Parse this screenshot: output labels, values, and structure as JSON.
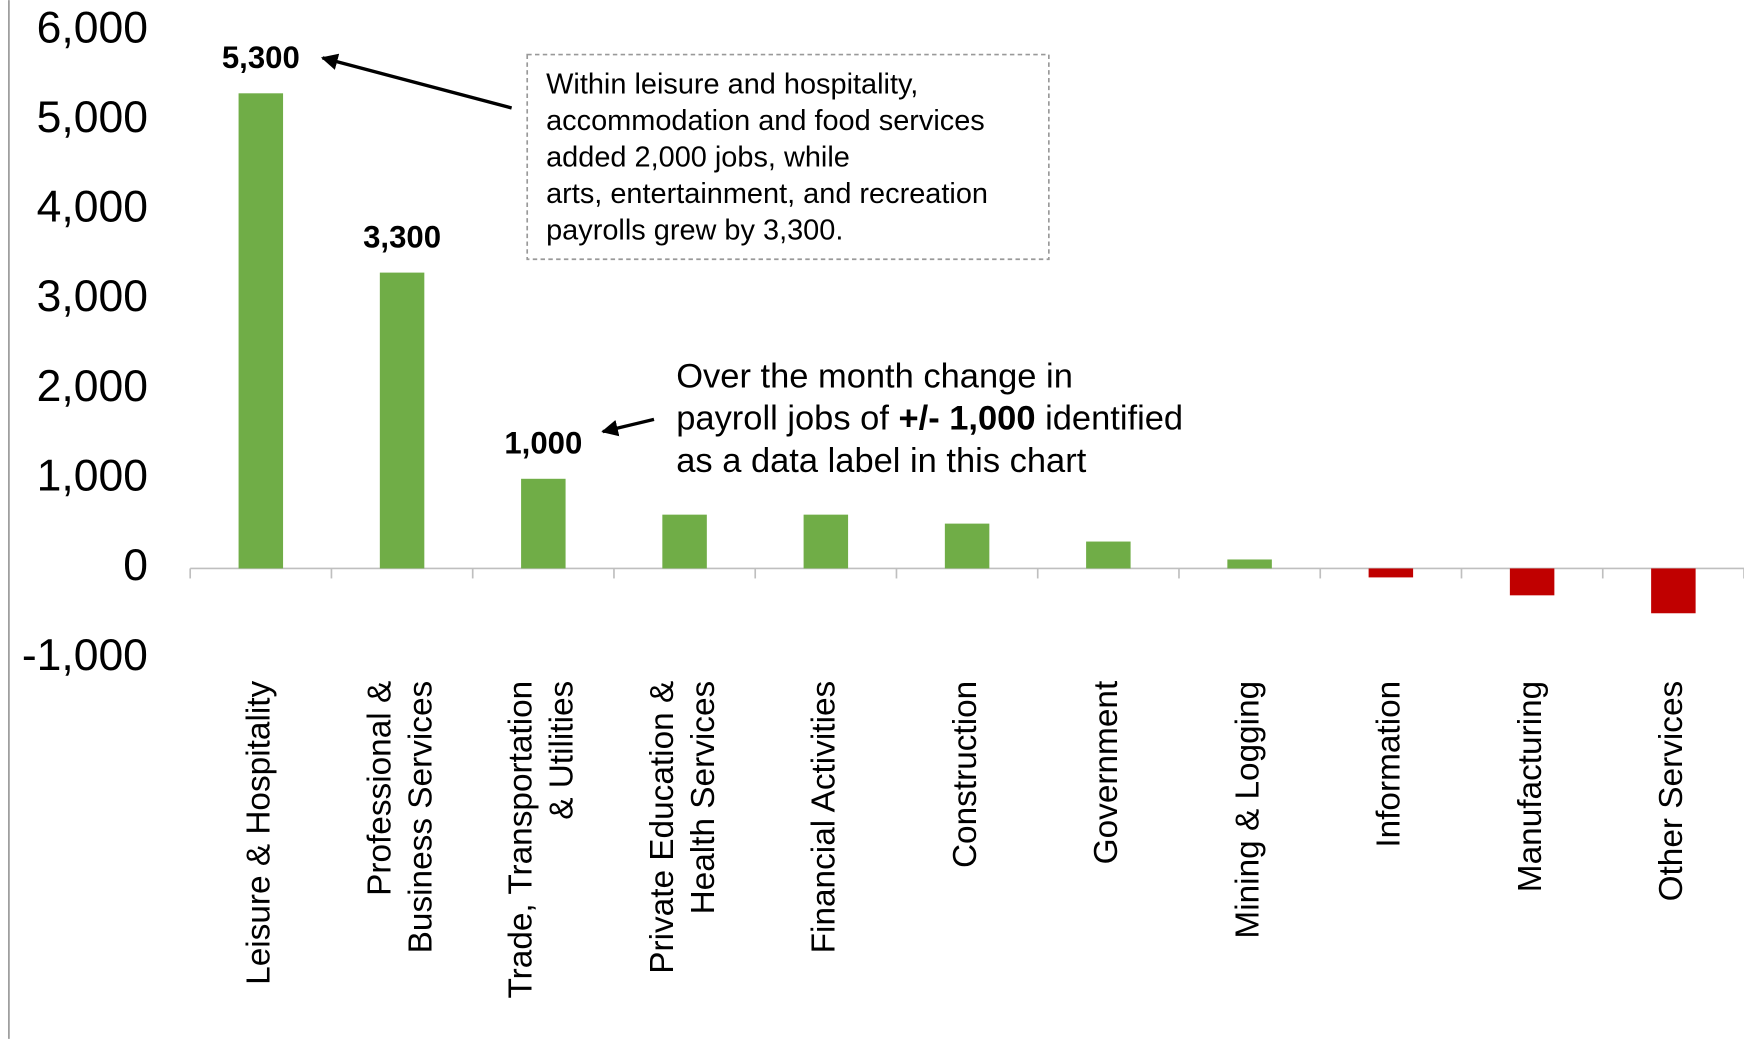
{
  "chart_data": {
    "type": "bar",
    "categories": [
      [
        "Leisure & Hospitality"
      ],
      [
        "Professional &",
        "Business Services"
      ],
      [
        "Trade, Transportation",
        "& Utilities"
      ],
      [
        "Private Education &",
        "Health Services"
      ],
      [
        "Financial Activities"
      ],
      [
        "Construction"
      ],
      [
        "Government"
      ],
      [
        "Mining & Logging"
      ],
      [
        "Information"
      ],
      [
        "Manufacturing"
      ],
      [
        "Other Services"
      ]
    ],
    "values": [
      5300,
      3300,
      1000,
      600,
      600,
      500,
      300,
      100,
      -100,
      -300,
      -500
    ],
    "value_labels": [
      "5,300",
      "3,300",
      "1,000",
      null,
      null,
      null,
      null,
      null,
      null,
      null,
      null
    ],
    "color_positive": "#70ad47",
    "color_negative": "#c00000",
    "ylim": [
      -1000,
      6000
    ],
    "yticks": [
      {
        "value": -1000,
        "label": "-1,000"
      },
      0,
      {
        "value": 1000,
        "label": "1,000"
      },
      {
        "value": 2000,
        "label": "2,000"
      },
      {
        "value": 3000,
        "label": "3,000"
      },
      {
        "value": 4000,
        "label": "4,000"
      },
      {
        "value": 5000,
        "label": "5,000"
      },
      {
        "value": 6000,
        "label": "6,000"
      }
    ],
    "annotations": [
      {
        "lines": [
          "Within leisure and hospitality,",
          "accommodation and food services",
          "added 2,000 jobs, while",
          "arts, entertainment, and recreation",
          "payrolls grew by 3,300."
        ]
      },
      {
        "line1": "Over the month change in",
        "line2_start": "payroll jobs of ",
        "line2_bold": "+/- 1,000",
        "line2_end": " identified",
        "line3": "as a data label in this chart"
      }
    ]
  }
}
